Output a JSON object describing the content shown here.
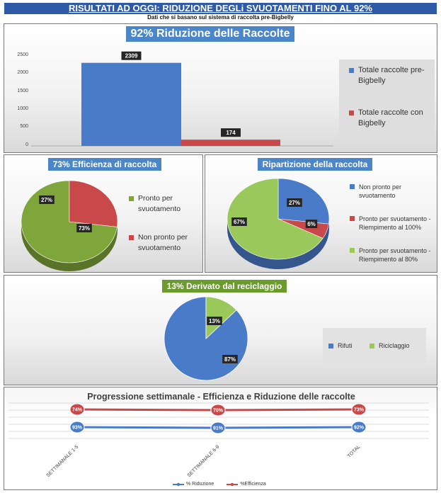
{
  "header": {
    "title": "RISULTATI AD OGGI: RIDUZIONE DEGLi SVUOTAMENTI FINO AL 92%",
    "subtitle": "Dati che si basano sul sistema di raccolta pre-Bigbelly"
  },
  "colors": {
    "blue": "#4a7bc8",
    "red": "#c9484a",
    "green": "#7fa63a",
    "light_green": "#9ac85a",
    "banner_blue": "#4a86c8",
    "banner_green": "#6b9a2d"
  },
  "chart_data": [
    {
      "type": "bar",
      "title": "92% Riduzione delle Raccolte",
      "categories": [
        "Totale raccolte pre-Bigbelly",
        "Totale raccolte con Bigbelly"
      ],
      "values": [
        2309,
        174
      ],
      "labels": [
        "2309",
        "174"
      ],
      "yticks": [
        "0",
        "500",
        "1000",
        "1500",
        "2000",
        "2500"
      ],
      "ylim": [
        0,
        2500
      ],
      "legend": [
        "Totale raccolte pre-Bigbelly",
        "Totale raccolte con Bigbelly"
      ],
      "legend_position": "right"
    },
    {
      "type": "pie",
      "title": "73% Efficienza di raccolta",
      "slices": [
        {
          "name": "Pronto per svuotamento",
          "value": 73,
          "label": "73%"
        },
        {
          "name": "Non pronto per svuotamento",
          "value": 27,
          "label": "27%"
        }
      ],
      "legend": [
        "Pronto per svuotamento",
        "Non pronto per svuotamento"
      ]
    },
    {
      "type": "pie",
      "title": "Ripartizione della raccolta",
      "slices": [
        {
          "name": "Non pronto per svuotamento",
          "value": 27,
          "label": "27%"
        },
        {
          "name": "Pronto per svuotamento - Riempimento al 100%",
          "value": 6,
          "label": "6%"
        },
        {
          "name": "Pronto per svuotamento - Riempimento al 80%",
          "value": 67,
          "label": "67%"
        }
      ],
      "legend": [
        "Non pronto per svuotamento",
        "Pronto per svuotamento - Riempimento al 100%",
        "Pronto per svuotamento - Riempimento al 80%"
      ]
    },
    {
      "type": "pie",
      "title": "13% Derivato dal reciclaggio",
      "slices": [
        {
          "name": "Rifuti",
          "value": 87,
          "label": "87%"
        },
        {
          "name": "Riciclaggio",
          "value": 13,
          "label": "13%"
        }
      ],
      "legend": [
        "Rifuti",
        "Riciclaggio"
      ]
    },
    {
      "type": "line",
      "title": "Progressione settimanale - Efficienza e Riduzione delle raccolte",
      "categories": [
        "SETTIMANALE 1-5",
        "SETTIMANALE 6-9",
        "TOTAL"
      ],
      "series": [
        {
          "name": "%Efficienza",
          "values": [
            74,
            70,
            73
          ],
          "labels": [
            "74%",
            "70%",
            "73%"
          ]
        },
        {
          "name": "% Riduzione",
          "values": [
            93,
            91,
            92
          ],
          "labels": [
            "93%",
            "91%",
            "92%"
          ]
        }
      ],
      "legend": [
        "% Riduzione",
        "%Efficienza"
      ],
      "legend_position": "bottom"
    }
  ]
}
